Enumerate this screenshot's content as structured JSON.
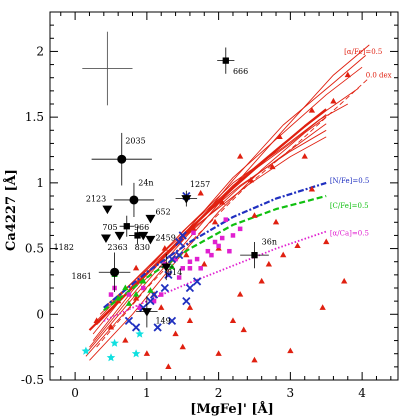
{
  "chart_data": {
    "type": "scatter",
    "xlabel": "[MgFe]' [Å]",
    "ylabel": "Ca4227 [Å]",
    "xlim": [
      -0.35,
      4.5
    ],
    "ylim": [
      -0.5,
      2.3
    ],
    "xticks": [
      "0",
      "1",
      "2",
      "3",
      "4"
    ],
    "yticks": [
      "-0.5",
      "0",
      "0.5",
      "1",
      "1.5",
      "2"
    ],
    "error_cross": {
      "x": 0.45,
      "y": 1.87,
      "xerr": 0.35,
      "yerr": 0.28
    },
    "annotations": [
      {
        "text": "[α/Fe]=0.5",
        "x": 3.75,
        "y": 1.98,
        "color": "#e02010"
      },
      {
        "text": "0.0 dex",
        "x": 4.05,
        "y": 1.8,
        "color": "#e02010"
      },
      {
        "text": "[N/Fe]=0.5",
        "x": 3.55,
        "y": 1.0,
        "color": "#2030c0"
      },
      {
        "text": "[C/Fe]=0.5",
        "x": 3.55,
        "y": 0.81,
        "color": "#10c010"
      },
      {
        "text": "[α/Ca]=0.5",
        "x": 3.55,
        "y": 0.6,
        "color": "#e020d0"
      }
    ],
    "model_lines": [
      {
        "name": "[α/Fe]=0.5",
        "color": "#e02010",
        "style": "solid-thick",
        "x": [
          0.2,
          0.7,
          1.2,
          1.7,
          2.2,
          2.7,
          3.2,
          3.5
        ],
        "y": [
          -0.12,
          0.15,
          0.42,
          0.7,
          0.96,
          1.2,
          1.43,
          1.56
        ]
      },
      {
        "name": "model",
        "color": "#e02010",
        "style": "solid",
        "x": [
          0.15,
          0.8,
          1.5,
          2.2,
          2.9,
          3.6,
          4.1
        ],
        "y": [
          -0.32,
          0.08,
          0.52,
          0.97,
          1.4,
          1.82,
          2.05
        ]
      },
      {
        "name": "model",
        "color": "#e02010",
        "style": "solid",
        "x": [
          0.18,
          0.8,
          1.5,
          2.2,
          2.9,
          3.6,
          4.05
        ],
        "y": [
          -0.28,
          0.12,
          0.56,
          1.02,
          1.44,
          1.76,
          1.97
        ]
      },
      {
        "name": "model",
        "color": "#e02010",
        "style": "solid",
        "x": [
          0.2,
          0.8,
          1.5,
          2.2,
          2.9,
          3.5,
          4.0
        ],
        "y": [
          -0.25,
          0.15,
          0.6,
          1.04,
          1.38,
          1.67,
          1.88
        ]
      },
      {
        "name": "model",
        "color": "#e02010",
        "style": "solid",
        "x": [
          0.25,
          0.8,
          1.5,
          2.2,
          2.9,
          3.5,
          3.95
        ],
        "y": [
          -0.2,
          0.18,
          0.6,
          0.98,
          1.3,
          1.55,
          1.72
        ]
      },
      {
        "name": "model",
        "color": "#e02010",
        "style": "solid",
        "x": [
          0.25,
          0.8,
          1.5,
          2.2,
          2.9,
          3.4,
          3.8
        ],
        "y": [
          -0.15,
          0.22,
          0.63,
          1.0,
          1.27,
          1.48,
          1.6
        ]
      },
      {
        "name": "model",
        "color": "#e02010",
        "style": "solid",
        "x": [
          0.3,
          0.9,
          1.6,
          2.3,
          3.0,
          3.5
        ],
        "y": [
          -0.08,
          0.25,
          0.62,
          0.97,
          1.25,
          1.45
        ]
      },
      {
        "name": "model",
        "color": "#e02010",
        "style": "solid",
        "x": [
          0.3,
          0.9,
          1.6,
          2.3,
          3.0,
          3.5
        ],
        "y": [
          -0.05,
          0.3,
          0.68,
          1.02,
          1.3,
          1.52
        ]
      },
      {
        "name": "model",
        "color": "#e02010",
        "style": "solid",
        "x": [
          0.35,
          0.9,
          1.6,
          2.3,
          3.0,
          3.5
        ],
        "y": [
          0.0,
          0.3,
          0.66,
          0.98,
          1.24,
          1.4
        ]
      },
      {
        "name": "model",
        "color": "#e02010",
        "style": "solid",
        "x": [
          0.4,
          1.0,
          1.7,
          2.4,
          3.0,
          3.5
        ],
        "y": [
          0.05,
          0.34,
          0.68,
          0.98,
          1.2,
          1.35
        ]
      },
      {
        "name": "model",
        "color": "#e02010",
        "style": "solid",
        "x": [
          0.2,
          0.8,
          1.4,
          2.0,
          2.6,
          3.2,
          3.5
        ],
        "y": [
          -0.35,
          0.0,
          0.4,
          0.78,
          1.1,
          1.38,
          1.5
        ]
      },
      {
        "name": "0.0 dex",
        "color": "#e02010",
        "style": "dashed",
        "x": [
          0.3,
          1.0,
          1.7,
          2.4,
          3.1,
          3.7,
          4.1
        ],
        "y": [
          -0.25,
          0.2,
          0.6,
          0.98,
          1.3,
          1.6,
          1.8
        ]
      },
      {
        "name": "[N/Fe]=0.5",
        "color": "#2030c0",
        "style": "dashdot",
        "x": [
          0.4,
          1.0,
          1.6,
          2.2,
          2.8,
          3.5
        ],
        "y": [
          0.05,
          0.32,
          0.55,
          0.74,
          0.88,
          1.0
        ]
      },
      {
        "name": "[C/Fe]=0.5",
        "color": "#10c010",
        "style": "dashed-thick",
        "x": [
          0.4,
          1.0,
          1.6,
          2.2,
          2.8,
          3.5
        ],
        "y": [
          0.03,
          0.28,
          0.5,
          0.68,
          0.8,
          0.9
        ]
      },
      {
        "name": "[α/Ca]=0.5",
        "color": "#e020d0",
        "style": "dotted",
        "x": [
          0.4,
          1.0,
          1.6,
          2.2,
          2.8,
          3.5
        ],
        "y": [
          -0.05,
          0.1,
          0.24,
          0.37,
          0.5,
          0.63
        ]
      }
    ],
    "labeled_points": [
      {
        "label": "666",
        "marker": "square",
        "x": 2.1,
        "y": 1.93,
        "xerr": 0.12,
        "yerr": 0.1,
        "lx": 2.2,
        "ly": 1.83
      },
      {
        "label": "2035",
        "marker": "circle",
        "x": 0.65,
        "y": 1.18,
        "xerr": 0.42,
        "yerr": 0.2,
        "lx": 0.7,
        "ly": 1.3
      },
      {
        "label": "24n",
        "marker": "circle",
        "x": 0.82,
        "y": 0.87,
        "xerr": 0.28,
        "yerr": 0.13,
        "lx": 0.88,
        "ly": 0.98
      },
      {
        "label": "1257",
        "marker": "triangle-down",
        "x": 1.55,
        "y": 0.88,
        "xerr": 0.15,
        "yerr": 0.06,
        "lx": 1.6,
        "ly": 0.97
      },
      {
        "label": "2123",
        "marker": "triangle-down",
        "x": 0.45,
        "y": 0.8,
        "xerr": 0,
        "yerr": 0,
        "lx": 0.15,
        "ly": 0.86
      },
      {
        "label": "652",
        "marker": "triangle-down",
        "x": 1.05,
        "y": 0.73,
        "xerr": 0,
        "yerr": 0,
        "lx": 1.12,
        "ly": 0.76
      },
      {
        "label": "705",
        "marker": "square",
        "x": 0.72,
        "y": 0.67,
        "xerr": 0.1,
        "yerr": 0.08,
        "lx": 0.38,
        "ly": 0.64
      },
      {
        "label": "966",
        "marker": "triangle-down",
        "x": 0.95,
        "y": 0.6,
        "xerr": 0,
        "yerr": 0,
        "lx": 0.82,
        "ly": 0.64
      },
      {
        "label": "2459",
        "marker": "triangle-down",
        "x": 1.05,
        "y": 0.57,
        "xerr": 0,
        "yerr": 0,
        "lx": 1.12,
        "ly": 0.56
      },
      {
        "label": "830",
        "marker": "square",
        "x": 0.87,
        "y": 0.6,
        "xerr": 0.12,
        "yerr": 0.07,
        "lx": 0.83,
        "ly": 0.49
      },
      {
        "label": "1182",
        "marker": "triangle-down",
        "x": 0.43,
        "y": 0.58,
        "xerr": 0,
        "yerr": 0,
        "lx": -0.3,
        "ly": 0.49
      },
      {
        "label": "2363",
        "marker": "triangle-down",
        "x": 0.62,
        "y": 0.6,
        "xerr": 0,
        "yerr": 0,
        "lx": 0.45,
        "ly": 0.49
      },
      {
        "label": "1861",
        "marker": "circle",
        "x": 0.55,
        "y": 0.32,
        "xerr": 0.22,
        "yerr": 0.15,
        "lx": -0.05,
        "ly": 0.27
      },
      {
        "label": "814",
        "marker": "triangle-down",
        "x": 1.27,
        "y": 0.36,
        "xerr": 0.1,
        "yerr": 0.1,
        "lx": 1.28,
        "ly": 0.3
      },
      {
        "label": "149",
        "marker": "triangle-down",
        "x": 1.0,
        "y": 0.02,
        "xerr": 0.15,
        "yerr": 0.12,
        "lx": 1.12,
        "ly": -0.07
      },
      {
        "label": "36n",
        "marker": "square",
        "x": 2.5,
        "y": 0.45,
        "xerr": 0.2,
        "yerr": 0.1,
        "lx": 2.6,
        "ly": 0.53
      }
    ],
    "scatter_series": [
      {
        "marker": "triangle-up",
        "color": "#e02010",
        "points": [
          [
            3.8,
            1.82
          ],
          [
            3.6,
            1.62
          ],
          [
            3.3,
            1.55
          ],
          [
            2.85,
            1.35
          ],
          [
            3.2,
            1.2
          ],
          [
            2.75,
            1.12
          ],
          [
            2.3,
            1.2
          ],
          [
            2.5,
            0.75
          ],
          [
            2.8,
            0.7
          ],
          [
            3.1,
            0.52
          ],
          [
            3.3,
            0.95
          ],
          [
            2.7,
            0.38
          ],
          [
            2.3,
            0.15
          ],
          [
            2.2,
            -0.05
          ],
          [
            2.35,
            -0.12
          ],
          [
            3.0,
            -0.28
          ],
          [
            3.45,
            0.05
          ],
          [
            3.75,
            0.25
          ],
          [
            2.5,
            -0.35
          ],
          [
            2.0,
            -0.3
          ],
          [
            1.6,
            -0.05
          ],
          [
            1.5,
            -0.25
          ],
          [
            1.4,
            -0.15
          ],
          [
            1.6,
            0.05
          ],
          [
            1.8,
            0.38
          ],
          [
            2.0,
            0.5
          ],
          [
            1.95,
            0.7
          ],
          [
            2.05,
            0.85
          ],
          [
            1.65,
            0.65
          ],
          [
            1.55,
            0.45
          ],
          [
            1.2,
            0.05
          ],
          [
            1.1,
            0.15
          ],
          [
            0.85,
            0.12
          ],
          [
            0.6,
            0.1
          ],
          [
            0.5,
            -0.1
          ],
          [
            0.3,
            -0.05
          ],
          [
            0.7,
            -0.2
          ],
          [
            1.0,
            -0.3
          ],
          [
            1.3,
            -0.4
          ],
          [
            2.6,
            0.25
          ],
          [
            2.9,
            0.45
          ],
          [
            3.5,
            0.55
          ],
          [
            2.45,
            1.02
          ],
          [
            1.75,
            0.92
          ],
          [
            1.25,
            0.5
          ],
          [
            0.85,
            0.35
          ]
        ]
      },
      {
        "marker": "square",
        "color": "#e020d0",
        "points": [
          [
            1.45,
            0.28
          ],
          [
            1.6,
            0.35
          ],
          [
            1.7,
            0.42
          ],
          [
            1.85,
            0.48
          ],
          [
            1.95,
            0.55
          ],
          [
            2.0,
            0.52
          ],
          [
            2.05,
            0.58
          ],
          [
            2.2,
            0.6
          ],
          [
            2.3,
            0.65
          ],
          [
            2.15,
            0.48
          ],
          [
            1.75,
            0.35
          ],
          [
            1.6,
            0.4
          ],
          [
            1.5,
            0.35
          ],
          [
            1.3,
            0.3
          ],
          [
            1.2,
            0.15
          ],
          [
            1.1,
            0.1
          ],
          [
            0.9,
            0.05
          ],
          [
            0.75,
            0.15
          ],
          [
            0.55,
            0.2
          ],
          [
            0.5,
            0.15
          ],
          [
            0.95,
            0.2
          ],
          [
            1.65,
            0.62
          ],
          [
            1.9,
            0.45
          ],
          [
            2.1,
            0.72
          ],
          [
            1.4,
            0.42
          ],
          [
            1.25,
            0.38
          ]
        ]
      },
      {
        "marker": "x",
        "color": "#2030c0",
        "points": [
          [
            1.55,
            0.9
          ],
          [
            1.5,
            0.6
          ],
          [
            1.35,
            0.42
          ],
          [
            1.3,
            0.3
          ],
          [
            1.25,
            0.2
          ],
          [
            1.1,
            0.15
          ],
          [
            1.05,
            0.1
          ],
          [
            0.95,
            0.05
          ],
          [
            0.85,
            -0.1
          ],
          [
            0.75,
            -0.05
          ],
          [
            1.35,
            -0.05
          ],
          [
            1.15,
            -0.1
          ],
          [
            1.55,
            0.1
          ],
          [
            1.7,
            0.25
          ],
          [
            1.6,
            0.2
          ],
          [
            1.45,
            0.45
          ],
          [
            1.45,
            0.55
          ]
        ]
      },
      {
        "marker": "star",
        "color": "#10e0e0",
        "points": [
          [
            0.15,
            -0.28
          ],
          [
            0.5,
            -0.33
          ],
          [
            0.85,
            -0.3
          ],
          [
            0.9,
            -0.15
          ],
          [
            0.55,
            -0.22
          ]
        ]
      },
      {
        "marker": "triangle-up",
        "color": "#10c010",
        "points": [
          [
            0.6,
            0.12
          ],
          [
            0.75,
            0.08
          ],
          [
            0.95,
            0.25
          ],
          [
            0.85,
            0.15
          ],
          [
            0.55,
            0.3
          ],
          [
            1.35,
            0.36
          ],
          [
            1.05,
            0.18
          ],
          [
            0.7,
            0.2
          ]
        ]
      }
    ]
  }
}
